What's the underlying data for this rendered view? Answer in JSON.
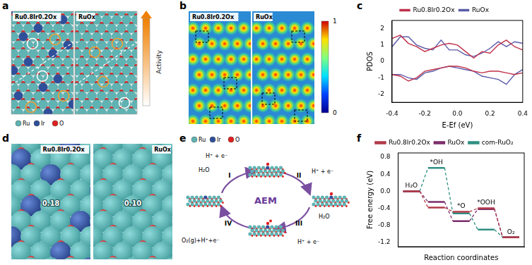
{
  "chart_data": [
    {
      "panel": "c",
      "type": "line",
      "x_label": "E-Ef (eV)",
      "y_label": "PDOS",
      "x": [
        -0.4,
        -0.35,
        -0.3,
        -0.25,
        -0.2,
        -0.15,
        -0.1,
        -0.05,
        0,
        0.05,
        0.1,
        0.15,
        0.2,
        0.25,
        0.3,
        0.35,
        0.4
      ],
      "series": [
        {
          "name": "Ru0.8Ir0.2Ox",
          "color": "#c0304a",
          "values": [
            1.4,
            1.6,
            1.1,
            0.9,
            0.6,
            0.8,
            1.0,
            1.1,
            1.0,
            0.6,
            0.2,
            0.6,
            0.5,
            1.0,
            1.3,
            0.9,
            0.7
          ]
        },
        {
          "name": "RuOx",
          "color": "#5a5aa8",
          "values": [
            0.9,
            1.5,
            1.5,
            1.0,
            0.8,
            0.7,
            1.3,
            0.7,
            0.7,
            0.4,
            0.3,
            0.5,
            0.8,
            1.2,
            0.9,
            1.2,
            1.1
          ]
        },
        {
          "name": "Ru0.8Ir0.2Ox",
          "color": "#c0304a",
          "values": [
            -0.8,
            -0.9,
            -1.2,
            -1.0,
            -0.6,
            -0.5,
            -0.4,
            -0.3,
            -0.3,
            -0.4,
            -0.6,
            -0.7,
            -0.6,
            -0.6,
            -0.7,
            -0.8,
            -0.7
          ]
        },
        {
          "name": "RuOx",
          "color": "#5a5aa8",
          "values": [
            -0.8,
            -0.8,
            -1.0,
            -1.1,
            -0.7,
            -0.6,
            -0.4,
            -0.3,
            -0.4,
            -0.5,
            -0.6,
            -0.9,
            -1.0,
            -1.1,
            -1.4,
            -0.8,
            -0.5
          ]
        }
      ],
      "xlim": [
        -0.4,
        0.4
      ],
      "xticks": [
        -0.4,
        -0.2,
        {
          "value": 0,
          "label": "0.0"
        },
        0.2,
        0.4
      ],
      "ylim": [
        -2.5,
        2.5
      ],
      "yticks": [
        -2,
        -1,
        0,
        1,
        2
      ],
      "grid": false,
      "legend": "top"
    },
    {
      "panel": "f",
      "type": "step",
      "x_label": "Reaction coordinates",
      "y_label": "Free energy (eV)",
      "categories": [
        "H₂O",
        "*OH",
        "*O",
        "*OOH",
        "O₂"
      ],
      "series": [
        {
          "name": "Ru0.8Ir0.2Ox",
          "color": "#b03a48",
          "values": [
            0,
            -0.38,
            -0.48,
            -0.4,
            -1.08
          ]
        },
        {
          "name": "RuOx",
          "color": "#7b2d6b",
          "values": [
            0,
            -0.25,
            -0.7,
            -0.42,
            -1.08
          ]
        },
        {
          "name": "com-RuO₂",
          "color": "#2f8f82",
          "values": [
            0,
            0.55,
            -0.52,
            -0.9,
            -1.08
          ]
        }
      ],
      "ylim": [
        -1.3,
        0.9
      ],
      "yticks": [
        -1.2,
        -0.8,
        -0.4,
        {
          "value": 0,
          "label": "0.0"
        },
        0.4,
        0.8
      ],
      "grid": false,
      "legend": "top",
      "tick_labels": "y"
    }
  ],
  "diagrams": [
    {
      "panel": "a",
      "labels": [
        "Ru0.8Ir0.2Ox",
        "RuOx"
      ],
      "colorbar_label": "Activity",
      "legend": [
        "Ru",
        "Ir",
        "O"
      ]
    },
    {
      "panel": "b",
      "labels": [
        "Ru0.8Ir0.2Ox",
        "RuOx"
      ],
      "colorbar": {
        "range": [
          0,
          1
        ],
        "ticks": [
          0,
          1
        ]
      }
    },
    {
      "panel": "d",
      "labels": [
        "Ru0.8Ir0.2Ox",
        "RuOx"
      ],
      "site_labels": [
        "0.18",
        "0.10"
      ]
    },
    {
      "panel": "e",
      "title": "AEM",
      "legend": [
        "Ru",
        "Ir",
        "O"
      ],
      "steps": [
        {
          "numeral": "I",
          "texts": [
            "H₂O",
            "H⁺ + e⁻"
          ]
        },
        {
          "numeral": "II",
          "texts": [
            "H⁺ + e⁻"
          ]
        },
        {
          "numeral": "III",
          "texts": [
            "H₂O",
            "H⁺ + e⁻"
          ]
        },
        {
          "numeral": "IV",
          "texts": [
            "O₂(g)+H⁺+e⁻"
          ]
        }
      ]
    }
  ]
}
